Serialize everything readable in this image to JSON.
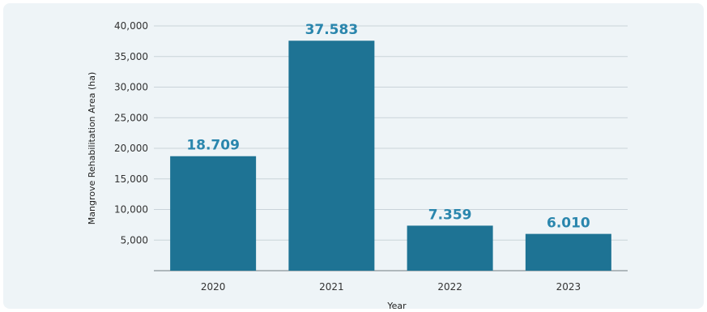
{
  "chart_data": {
    "type": "bar",
    "categories": [
      "2020",
      "2021",
      "2022",
      "2023"
    ],
    "values": [
      18709,
      37583,
      7359,
      6010
    ],
    "data_labels": [
      "18.709",
      "37.583",
      "7.359",
      "6.010"
    ],
    "title": "",
    "xlabel": "Year",
    "ylabel": "Mangrove Rehabilitation Area (ha)",
    "ylim": [
      0,
      40000
    ],
    "yticks": [
      5000,
      10000,
      15000,
      20000,
      25000,
      30000,
      35000,
      40000
    ],
    "ytick_labels": [
      "5,000",
      "10,000",
      "15,000",
      "20,000",
      "25,000",
      "30,000",
      "35,000",
      "40,000"
    ],
    "grid": true,
    "legend": "none",
    "colors": {
      "bar": "#1e7394",
      "data_label": "#2a86ad",
      "grid": "#c9d3d9",
      "baseline": "#9aa3a8",
      "panel": "#eef4f7"
    }
  }
}
